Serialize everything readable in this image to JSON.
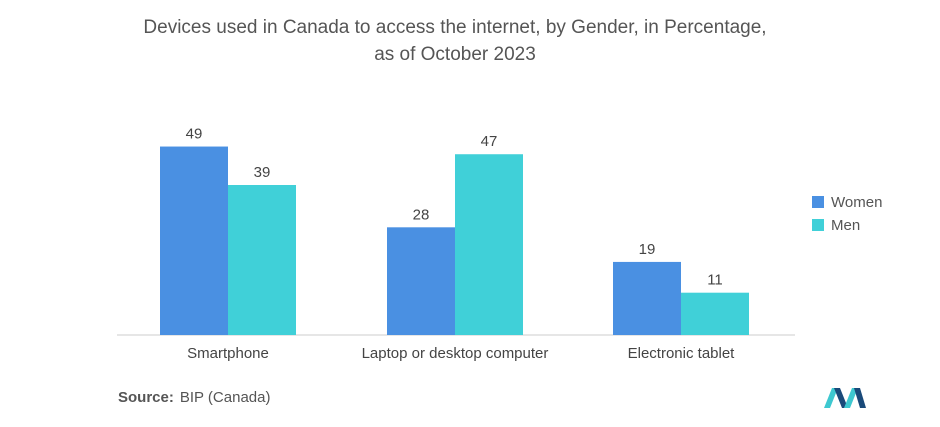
{
  "chart_data": {
    "type": "bar",
    "title_lines": [
      "Devices used in Canada to access the internet, by Gender, in Percentage,",
      "as of October 2023"
    ],
    "categories": [
      "Smartphone",
      "Laptop or desktop computer",
      "Electronic tablet"
    ],
    "series": [
      {
        "name": "Women",
        "values": [
          49,
          28,
          19
        ],
        "color": "#4a90e2"
      },
      {
        "name": "Men",
        "values": [
          39,
          47,
          11
        ],
        "color": "#40d0d8"
      }
    ],
    "ylim": [
      0,
      52
    ],
    "xlabel": "",
    "ylabel": "",
    "grid": false,
    "legend": "right"
  },
  "source": {
    "label": "Source:",
    "text": "BIP (Canada)"
  },
  "colors": {
    "axis": "#cccccc",
    "logo_dark": "#1a4a7a",
    "logo_light": "#3ec8d0"
  }
}
